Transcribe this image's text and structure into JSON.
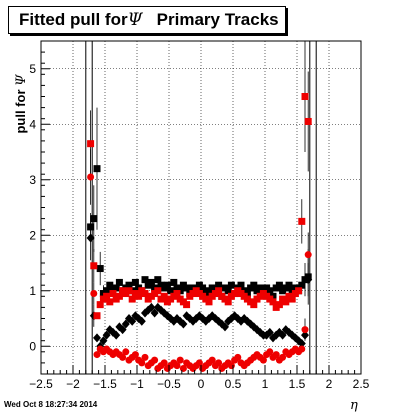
{
  "header": {
    "title_text": "Fitted pull for",
    "title_symbol": "Ψ",
    "title_suffix": "   Primary Tracks"
  },
  "timestamp": "Wed Oct  8 18:27:34 2014",
  "chart_data": {
    "type": "scatter",
    "title": "Fitted pull forΨ   Primary Tracks",
    "xlabel": "η",
    "ylabel_text": "pull for",
    "ylabel_symbol": "Ψ",
    "xlim": [
      -2.5,
      2.5
    ],
    "ylim": [
      -0.5,
      5.5
    ],
    "x_ticks": [
      "−2.5",
      "−2",
      "−1.5",
      "−1",
      "−0.5",
      "0",
      "0.5",
      "1",
      "1.5",
      "2",
      "2.5"
    ],
    "x_tick_values": [
      -2.5,
      -2,
      -1.5,
      -1,
      -0.5,
      0,
      0.5,
      1,
      1.5,
      2,
      2.5
    ],
    "y_ticks": [
      "0",
      "1",
      "2",
      "3",
      "4",
      "5"
    ],
    "y_tick_values": [
      0,
      1,
      2,
      3,
      4,
      5
    ],
    "grid": true,
    "colors": {
      "black": "#000000",
      "red": "#ee0000"
    },
    "series": [
      {
        "marker": "square",
        "color": "#000000",
        "x": [
          -1.725,
          -1.675,
          -1.625,
          -1.575,
          -1.525,
          -1.475,
          -1.425,
          -1.375,
          -1.325,
          -1.275,
          -1.225,
          -1.175,
          -1.125,
          -1.075,
          -1.025,
          -0.975,
          -0.925,
          -0.875,
          -0.825,
          -0.775,
          -0.725,
          -0.675,
          -0.625,
          -0.575,
          -0.525,
          -0.475,
          -0.425,
          -0.375,
          -0.325,
          -0.275,
          -0.225,
          -0.175,
          -0.125,
          -0.075,
          -0.025,
          0.025,
          0.075,
          0.125,
          0.175,
          0.225,
          0.275,
          0.325,
          0.375,
          0.425,
          0.475,
          0.525,
          0.575,
          0.625,
          0.675,
          0.725,
          0.775,
          0.825,
          0.875,
          0.925,
          0.975,
          1.025,
          1.075,
          1.125,
          1.175,
          1.225,
          1.275,
          1.325,
          1.375,
          1.425,
          1.475,
          1.525,
          1.575,
          1.625,
          1.675
        ],
        "y": [
          2.15,
          2.3,
          3.2,
          1.4,
          0.95,
          1.0,
          1.1,
          1.0,
          1.05,
          1.15,
          1.0,
          1.05,
          1.1,
          1.0,
          1.15,
          1.05,
          1.0,
          1.2,
          1.1,
          1.15,
          1.05,
          1.2,
          1.1,
          1.05,
          1.1,
          1.0,
          1.15,
          1.05,
          1.0,
          1.1,
          1.05,
          0.95,
          1.05,
          1.0,
          1.1,
          1.05,
          1.0,
          0.95,
          1.05,
          1.0,
          1.1,
          0.9,
          1.05,
          1.0,
          1.1,
          0.95,
          1.05,
          1.1,
          1.0,
          0.95,
          1.05,
          1.1,
          1.0,
          1.05,
          0.95,
          1.05,
          1.0,
          0.9,
          1.05,
          1.1,
          1.0,
          1.05,
          1.1,
          1.0,
          1.05,
          1.0,
          1.1,
          1.2,
          1.25
        ],
        "err": [
          0.25,
          0.6,
          1.1,
          0.3,
          0.15,
          0.1,
          0.1,
          0.1,
          0.1,
          0.1,
          0.1,
          0.1,
          0.1,
          0.1,
          0.1,
          0.1,
          0.1,
          0.1,
          0.1,
          0.1,
          0.1,
          0.1,
          0.1,
          0.1,
          0.1,
          0.1,
          0.1,
          0.1,
          0.1,
          0.1,
          0.1,
          0.1,
          0.1,
          0.1,
          0.1,
          0.1,
          0.1,
          0.1,
          0.1,
          0.1,
          0.1,
          0.1,
          0.1,
          0.1,
          0.1,
          0.1,
          0.1,
          0.1,
          0.1,
          0.1,
          0.1,
          0.1,
          0.1,
          0.1,
          0.1,
          0.1,
          0.1,
          0.1,
          0.1,
          0.1,
          0.1,
          0.1,
          0.1,
          0.1,
          0.1,
          0.1,
          0.1,
          0.3,
          0.5
        ]
      },
      {
        "marker": "diamond",
        "color": "#000000",
        "x": [
          -1.725,
          -1.675,
          -1.625,
          -1.575,
          -1.525,
          -1.475,
          -1.425,
          -1.375,
          -1.325,
          -1.275,
          -1.225,
          -1.175,
          -1.125,
          -1.075,
          -1.025,
          -0.975,
          -0.925,
          -0.875,
          -0.825,
          -0.775,
          -0.725,
          -0.675,
          -0.625,
          -0.575,
          -0.525,
          -0.475,
          -0.425,
          -0.375,
          -0.325,
          -0.275,
          -0.225,
          -0.175,
          -0.125,
          -0.075,
          -0.025,
          0.025,
          0.075,
          0.125,
          0.175,
          0.225,
          0.275,
          0.325,
          0.375,
          0.425,
          0.475,
          0.525,
          0.575,
          0.625,
          0.675,
          0.725,
          0.775,
          0.825,
          0.875,
          0.925,
          0.975,
          1.025,
          1.075,
          1.125,
          1.175,
          1.225,
          1.275,
          1.325,
          1.375,
          1.425,
          1.475,
          1.525,
          1.575,
          1.625,
          1.675
        ],
        "y": [
          1.95,
          0.55,
          0.15,
          0.0,
          0.1,
          0.2,
          0.3,
          0.25,
          0.2,
          0.35,
          0.3,
          0.4,
          0.5,
          0.45,
          0.55,
          0.5,
          0.45,
          0.6,
          0.65,
          0.7,
          0.6,
          0.7,
          0.65,
          0.6,
          0.55,
          0.5,
          0.45,
          0.5,
          0.45,
          0.4,
          0.55,
          0.5,
          0.45,
          0.5,
          0.55,
          0.5,
          0.45,
          0.5,
          0.55,
          0.5,
          0.45,
          0.4,
          0.35,
          0.45,
          0.5,
          0.55,
          0.5,
          0.45,
          0.5,
          0.45,
          0.4,
          0.35,
          0.3,
          0.25,
          0.2,
          0.2,
          0.25,
          0.15,
          0.2,
          0.25,
          0.2,
          0.3,
          0.25,
          0.2,
          0.15,
          0.1,
          0.05,
          0.2,
          1.2
        ],
        "err": [
          0.4,
          0.2,
          0.1,
          0.1,
          0.1,
          0.1,
          0.1,
          0.1,
          0.1,
          0.1,
          0.1,
          0.1,
          0.1,
          0.1,
          0.1,
          0.1,
          0.1,
          0.1,
          0.1,
          0.1,
          0.1,
          0.1,
          0.1,
          0.1,
          0.1,
          0.1,
          0.1,
          0.1,
          0.1,
          0.1,
          0.1,
          0.1,
          0.1,
          0.1,
          0.1,
          0.1,
          0.1,
          0.1,
          0.1,
          0.1,
          0.1,
          0.1,
          0.1,
          0.1,
          0.1,
          0.1,
          0.1,
          0.1,
          0.1,
          0.1,
          0.1,
          0.1,
          0.1,
          0.1,
          0.1,
          0.1,
          0.1,
          0.1,
          0.1,
          0.1,
          0.1,
          0.1,
          0.1,
          0.1,
          0.1,
          0.1,
          0.1,
          0.1,
          0.3
        ]
      },
      {
        "marker": "square",
        "color": "#ee0000",
        "x": [
          -1.725,
          -1.675,
          -1.625,
          -1.575,
          -1.525,
          -1.475,
          -1.425,
          -1.375,
          -1.325,
          -1.275,
          -1.225,
          -1.175,
          -1.125,
          -1.075,
          -1.025,
          -0.975,
          -0.925,
          -0.875,
          -0.825,
          -0.775,
          -0.725,
          -0.675,
          -0.625,
          -0.575,
          -0.525,
          -0.475,
          -0.425,
          -0.375,
          -0.325,
          -0.275,
          -0.225,
          -0.175,
          -0.125,
          -0.075,
          -0.025,
          0.025,
          0.075,
          0.125,
          0.175,
          0.225,
          0.275,
          0.325,
          0.375,
          0.425,
          0.475,
          0.525,
          0.575,
          0.625,
          0.675,
          0.725,
          0.775,
          0.825,
          0.875,
          0.925,
          0.975,
          1.025,
          1.075,
          1.125,
          1.175,
          1.225,
          1.275,
          1.325,
          1.375,
          1.425,
          1.475,
          1.525,
          1.575,
          1.625,
          1.675
        ],
        "y": [
          3.65,
          1.45,
          0.55,
          0.75,
          0.85,
          0.9,
          0.8,
          0.95,
          0.85,
          0.9,
          1.0,
          0.95,
          1.0,
          0.85,
          0.95,
          0.9,
          1.0,
          0.95,
          0.85,
          0.9,
          0.95,
          1.0,
          0.85,
          0.9,
          0.8,
          0.85,
          0.9,
          0.95,
          0.85,
          0.8,
          0.75,
          0.9,
          0.95,
          1.0,
          0.95,
          0.9,
          0.85,
          0.8,
          0.9,
          0.95,
          1.0,
          0.9,
          0.85,
          0.8,
          0.9,
          0.95,
          1.0,
          0.95,
          0.9,
          0.85,
          0.8,
          0.75,
          0.85,
          0.9,
          0.95,
          0.9,
          0.85,
          0.8,
          0.7,
          0.75,
          0.85,
          0.8,
          0.9,
          0.85,
          0.95,
          1.0,
          2.25,
          4.5,
          4.05
        ],
        "err": [
          0.6,
          0.3,
          0.1,
          0.1,
          0.1,
          0.1,
          0.1,
          0.1,
          0.1,
          0.1,
          0.1,
          0.1,
          0.1,
          0.1,
          0.1,
          0.1,
          0.1,
          0.1,
          0.1,
          0.1,
          0.1,
          0.1,
          0.1,
          0.1,
          0.1,
          0.1,
          0.1,
          0.1,
          0.1,
          0.1,
          0.1,
          0.1,
          0.1,
          0.1,
          0.1,
          0.1,
          0.1,
          0.1,
          0.1,
          0.1,
          0.1,
          0.1,
          0.1,
          0.1,
          0.1,
          0.1,
          0.1,
          0.1,
          0.1,
          0.1,
          0.1,
          0.1,
          0.1,
          0.1,
          0.1,
          0.1,
          0.1,
          0.1,
          0.1,
          0.1,
          0.1,
          0.1,
          0.1,
          0.1,
          0.1,
          0.1,
          0.4,
          1.0,
          0.9
        ]
      },
      {
        "marker": "circle",
        "color": "#ee0000",
        "x": [
          -1.725,
          -1.675,
          -1.625,
          -1.575,
          -1.525,
          -1.475,
          -1.425,
          -1.375,
          -1.325,
          -1.275,
          -1.225,
          -1.175,
          -1.125,
          -1.075,
          -1.025,
          -0.975,
          -0.925,
          -0.875,
          -0.825,
          -0.775,
          -0.725,
          -0.675,
          -0.625,
          -0.575,
          -0.525,
          -0.475,
          -0.425,
          -0.375,
          -0.325,
          -0.275,
          -0.225,
          -0.175,
          -0.125,
          -0.075,
          -0.025,
          0.025,
          0.075,
          0.125,
          0.175,
          0.225,
          0.275,
          0.325,
          0.375,
          0.425,
          0.475,
          0.525,
          0.575,
          0.625,
          0.675,
          0.725,
          0.775,
          0.825,
          0.875,
          0.925,
          0.975,
          1.025,
          1.075,
          1.125,
          1.175,
          1.225,
          1.275,
          1.325,
          1.375,
          1.425,
          1.475,
          1.525,
          1.575,
          1.625,
          1.675
        ],
        "y": [
          3.05,
          0.95,
          -0.15,
          -0.05,
          -0.1,
          -0.05,
          -0.1,
          -0.15,
          -0.1,
          -0.15,
          -0.2,
          -0.1,
          -0.25,
          -0.2,
          -0.15,
          -0.25,
          -0.3,
          -0.2,
          -0.35,
          -0.3,
          -0.25,
          -0.4,
          -0.35,
          -0.3,
          -0.4,
          -0.35,
          -0.3,
          -0.35,
          -0.25,
          -0.4,
          -0.3,
          -0.35,
          -0.4,
          -0.35,
          -0.3,
          -0.4,
          -0.35,
          -0.3,
          -0.25,
          -0.35,
          -0.3,
          -0.4,
          -0.35,
          -0.3,
          -0.35,
          -0.25,
          -0.2,
          -0.3,
          -0.35,
          -0.3,
          -0.25,
          -0.2,
          -0.15,
          -0.2,
          -0.25,
          -0.15,
          -0.1,
          -0.2,
          -0.15,
          -0.25,
          -0.2,
          -0.1,
          -0.15,
          -0.1,
          -0.05,
          -0.1,
          -0.05,
          0.3,
          1.65
        ],
        "err": [
          0.5,
          0.2,
          0.1,
          0.1,
          0.1,
          0.1,
          0.1,
          0.1,
          0.1,
          0.1,
          0.1,
          0.1,
          0.1,
          0.1,
          0.1,
          0.1,
          0.1,
          0.1,
          0.1,
          0.1,
          0.1,
          0.1,
          0.1,
          0.1,
          0.1,
          0.1,
          0.1,
          0.1,
          0.1,
          0.1,
          0.1,
          0.1,
          0.1,
          0.1,
          0.1,
          0.1,
          0.1,
          0.1,
          0.1,
          0.1,
          0.1,
          0.1,
          0.1,
          0.1,
          0.1,
          0.1,
          0.1,
          0.1,
          0.1,
          0.1,
          0.1,
          0.1,
          0.1,
          0.1,
          0.1,
          0.1,
          0.1,
          0.1,
          0.1,
          0.1,
          0.1,
          0.1,
          0.1,
          0.1,
          0.1,
          0.1,
          0.1,
          0.2,
          0.4
        ]
      }
    ],
    "vertical_markers": [
      -1.8,
      -1.7,
      1.7,
      1.8
    ]
  }
}
